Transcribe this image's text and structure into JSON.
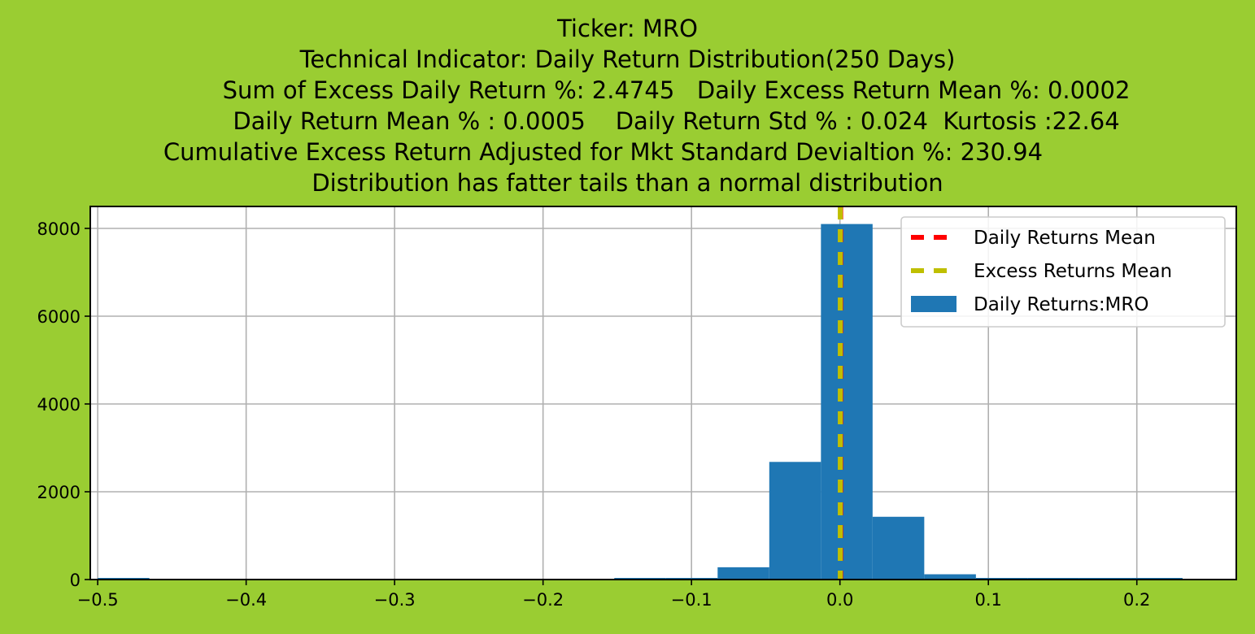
{
  "chart_data": {
    "type": "bar",
    "title_lines": [
      "Ticker: MRO",
      "Technical Indicator: Daily Return Distribution(250 Days)",
      "Sum of Excess Daily Return %: 2.4745   Daily Excess Return Mean %: 0.0002",
      "Daily Return Mean % : 0.0005    Daily Return Std % : 0.024  Kurtosis :22.64",
      "Cumulative Excess Return Adjusted for Mkt Standard Devialtion %: 230.94",
      "Distribution has fatter tails than a normal distribution"
    ],
    "xlim": [
      -0.505,
      0.267
    ],
    "ylim": [
      0,
      8500
    ],
    "xticks": [
      -0.5,
      -0.4,
      -0.3,
      -0.2,
      -0.1,
      0.0,
      0.1,
      0.2
    ],
    "xtick_labels": [
      "−0.5",
      "−0.4",
      "−0.3",
      "−0.2",
      "−0.1",
      "0.0",
      "0.1",
      "0.2"
    ],
    "yticks": [
      0,
      2000,
      4000,
      6000,
      8000
    ],
    "ytick_labels": [
      "0",
      "2000",
      "4000",
      "6000",
      "8000"
    ],
    "grid": true,
    "legend_position": "top-right",
    "histogram": {
      "name": "Daily Returns:MRO",
      "color": "#1f77b4",
      "bin_edges": [
        -0.5,
        -0.4652,
        -0.4304,
        -0.3956,
        -0.3608,
        -0.326,
        -0.2912,
        -0.2564,
        -0.2216,
        -0.1868,
        -0.152,
        -0.1172,
        -0.0824,
        -0.0476,
        -0.0128,
        0.022,
        0.0568,
        0.0916,
        0.1264,
        0.1612,
        0.196,
        0.2308
      ],
      "counts": [
        1,
        0,
        0,
        0,
        0,
        0,
        0,
        0,
        0,
        0,
        3,
        30,
        280,
        2680,
        8100,
        1430,
        120,
        25,
        5,
        2,
        1
      ]
    },
    "vlines": [
      {
        "name": "Daily Returns Mean",
        "x": 0.0005,
        "color": "#ff0000"
      },
      {
        "name": "Excess Returns Mean",
        "x": 0.0002,
        "color": "#bfbf00"
      }
    ]
  }
}
